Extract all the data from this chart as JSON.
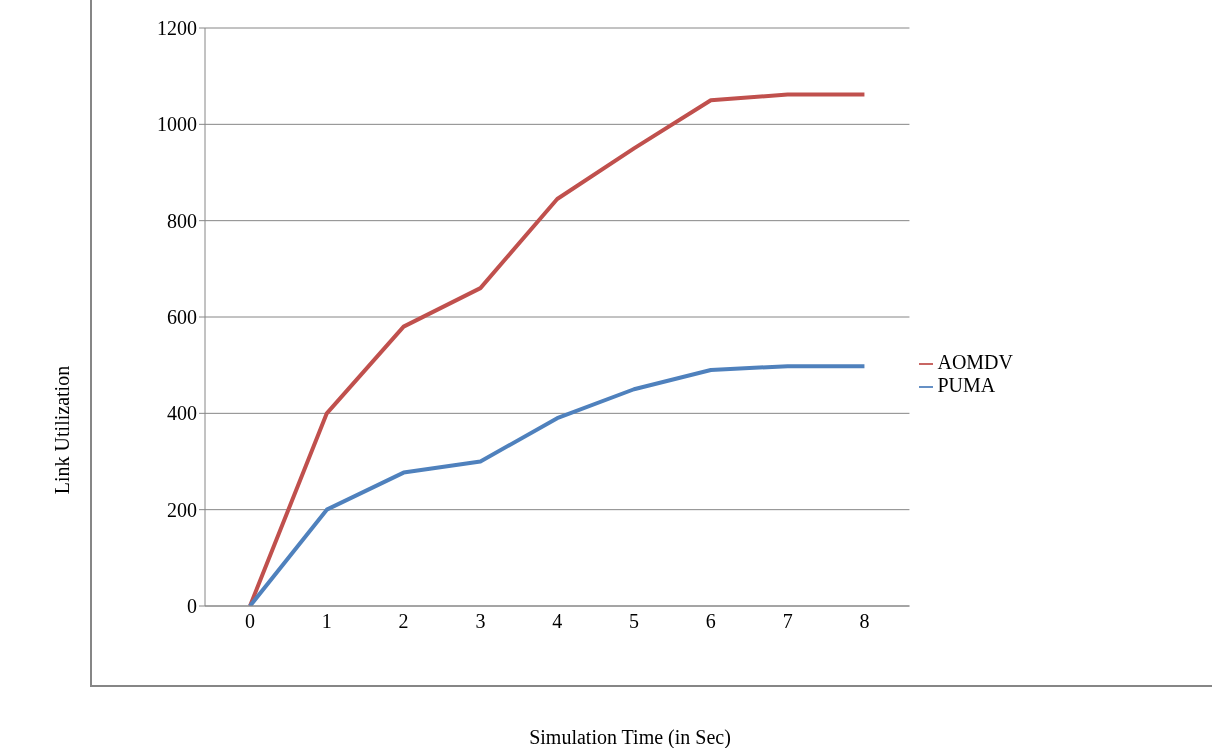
{
  "chart_data": {
    "type": "line",
    "xlabel": "Simulation Time (in Sec)",
    "ylabel": "Link Utilization",
    "categories": [
      "0",
      "1",
      "2",
      "3",
      "4",
      "5",
      "6",
      "7",
      "8"
    ],
    "series": [
      {
        "name": "AOMDV",
        "color": "#c0504d",
        "values": [
          0,
          400,
          580,
          660,
          845,
          950,
          1050,
          1062,
          1062
        ]
      },
      {
        "name": "PUMA",
        "color": "#4f81bd",
        "values": [
          0,
          200,
          277,
          300,
          390,
          450,
          490,
          498,
          498
        ]
      }
    ],
    "ylim": [
      0,
      1200
    ],
    "yticks": [
      0,
      200,
      400,
      600,
      800,
      1000,
      1200
    ],
    "grid": "y",
    "legend": "right",
    "marker": "none",
    "line_style": "solid"
  }
}
